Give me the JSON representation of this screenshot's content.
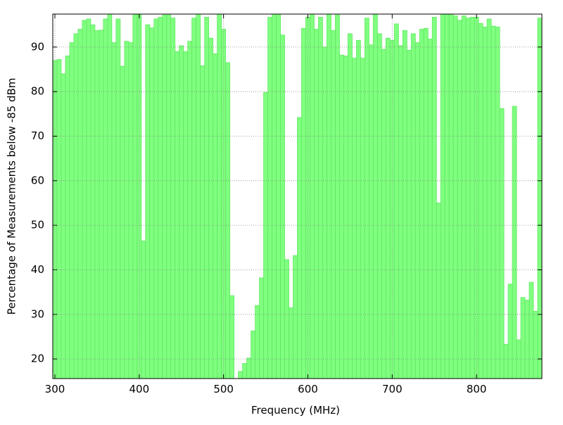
{
  "chart_data": {
    "type": "bar",
    "xlabel": "Frequency (MHz)",
    "ylabel": "Percentage of Measurements below -85 dBm",
    "x": [
      300,
      305,
      310,
      315,
      320,
      325,
      330,
      335,
      340,
      345,
      350,
      355,
      360,
      365,
      370,
      375,
      380,
      385,
      390,
      395,
      400,
      405,
      410,
      415,
      420,
      425,
      430,
      435,
      440,
      445,
      450,
      455,
      460,
      465,
      470,
      475,
      480,
      485,
      490,
      495,
      500,
      505,
      510,
      515,
      520,
      525,
      530,
      535,
      540,
      545,
      550,
      555,
      560,
      565,
      570,
      575,
      580,
      585,
      590,
      595,
      600,
      605,
      610,
      615,
      620,
      625,
      630,
      635,
      640,
      645,
      650,
      655,
      660,
      665,
      670,
      675,
      680,
      685,
      690,
      695,
      700,
      705,
      710,
      715,
      720,
      725,
      730,
      735,
      740,
      745,
      750,
      755,
      760,
      765,
      770,
      775,
      780,
      785,
      790,
      795,
      800,
      805,
      810,
      815,
      820,
      825,
      830,
      835,
      840,
      845,
      850,
      855,
      860,
      865,
      870,
      875
    ],
    "values": [
      87,
      87.2,
      84,
      88,
      91,
      93,
      94,
      96,
      96.3,
      95,
      93.7,
      93.8,
      96.3,
      97.5,
      91,
      96.3,
      85.7,
      91.3,
      91,
      97.4,
      97.5,
      46.5,
      95,
      94.3,
      96.3,
      96.7,
      97.2,
      97.2,
      96.5,
      89,
      90.3,
      89,
      91.3,
      96.5,
      97.5,
      85.8,
      96.7,
      92,
      88.5,
      97.5,
      94,
      86.5,
      34.2,
      15,
      17.2,
      19,
      20.2,
      26.3,
      32,
      38.2,
      79.8,
      96.7,
      97.5,
      97.5,
      92.7,
      42.3,
      31.5,
      43.2,
      74.2,
      94.2,
      96.7,
      97.5,
      94,
      96.7,
      90,
      97.5,
      93.7,
      97.2,
      88.2,
      88,
      93,
      87.5,
      91.5,
      87.5,
      96.5,
      90.5,
      97.5,
      93,
      89.5,
      92,
      91.5,
      95.2,
      90.3,
      93.7,
      89.3,
      93,
      91,
      94,
      94.2,
      91.8,
      96.7,
      55,
      97.5,
      97.5,
      97.5,
      97,
      96,
      97,
      96.5,
      96.7,
      96.7,
      95.3,
      94.5,
      96.3,
      94.7,
      94.5,
      76.2,
      23.3,
      36.8,
      76.7,
      24.3,
      33.8,
      33.2,
      37.2,
      30.7,
      96.5
    ],
    "bar_width": 5,
    "color": "#80ff80",
    "xlim": [
      297.5,
      877.5
    ],
    "xticks": [
      300,
      400,
      500,
      600,
      700,
      800
    ],
    "ylim": [
      15.6,
      97.4
    ],
    "yticks": [
      20,
      30,
      40,
      50,
      60,
      70,
      80,
      90
    ],
    "grid": true
  }
}
